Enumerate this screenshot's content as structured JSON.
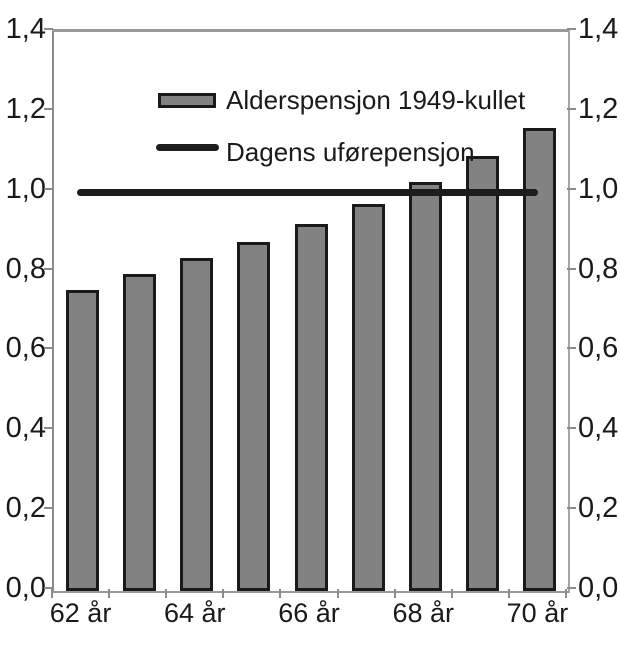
{
  "chart_data": {
    "type": "bar",
    "title": "",
    "xlabel": "",
    "ylabel": "",
    "grid": false,
    "legend_position": "top-left-inside",
    "y_axis_sides": "both",
    "ylim": [
      0.0,
      1.4
    ],
    "y_ticks": [
      {
        "value": 0.0,
        "label": "0,0"
      },
      {
        "value": 0.2,
        "label": "0,2"
      },
      {
        "value": 0.4,
        "label": "0,4"
      },
      {
        "value": 0.6,
        "label": "0,6"
      },
      {
        "value": 0.8,
        "label": "0,8"
      },
      {
        "value": 1.0,
        "label": "1,0"
      },
      {
        "value": 1.2,
        "label": "1,2"
      },
      {
        "value": 1.4,
        "label": "1,4"
      }
    ],
    "x_values": [
      62,
      63,
      64,
      65,
      66,
      67,
      68,
      69,
      70
    ],
    "x_tick_labels": [
      {
        "label": "62 år",
        "bar_index": 0
      },
      {
        "label": "64 år",
        "bar_index": 2
      },
      {
        "label": "66 år",
        "bar_index": 4
      },
      {
        "label": "68 år",
        "bar_index": 6
      },
      {
        "label": "70 år",
        "bar_index": 8
      }
    ],
    "series": [
      {
        "name": "Alderspensjon 1949-kullet",
        "type": "bar",
        "values": [
          0.755,
          0.795,
          0.835,
          0.875,
          0.92,
          0.97,
          1.025,
          1.09,
          1.16
        ],
        "fill_color": "#828282",
        "border_color": "#1a1a1a"
      },
      {
        "name": "Dagens uførepensjon",
        "type": "line",
        "value": 1.0,
        "color": "#1d1d1d"
      }
    ],
    "colors": {
      "background": "#ffffff",
      "axis": "#9a9a9a",
      "text": "#1a1a1a"
    }
  }
}
